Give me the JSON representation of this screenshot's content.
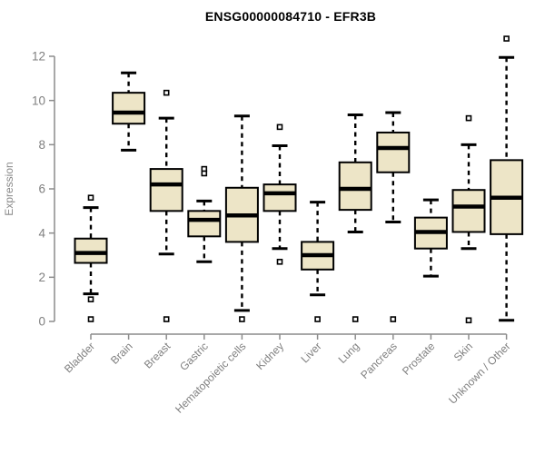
{
  "chart_data": {
    "type": "boxplot",
    "title": "ENSG00000084710 - EFR3B",
    "ylabel": "Expression",
    "xlabel": "",
    "ylim": [
      0,
      13
    ],
    "yticks": [
      0,
      2,
      4,
      6,
      8,
      10,
      12
    ],
    "grid": false,
    "legend": "none",
    "categories": [
      "Bladder",
      "Brain",
      "Breast",
      "Gastric",
      "Hematopoietic cells",
      "Kidney",
      "Liver",
      "Lung",
      "Pancreas",
      "Prostate",
      "Skin",
      "Unknown / Other"
    ],
    "series": [
      {
        "name": "Bladder",
        "whisker_low": 1.25,
        "q1": 2.65,
        "median": 3.1,
        "q3": 3.75,
        "whisker_high": 5.15,
        "outliers": [
          5.6,
          1.0,
          0.1
        ]
      },
      {
        "name": "Brain",
        "whisker_low": 7.75,
        "q1": 8.95,
        "median": 9.45,
        "q3": 10.35,
        "whisker_high": 11.25,
        "outliers": []
      },
      {
        "name": "Breast",
        "whisker_low": 3.05,
        "q1": 5.0,
        "median": 6.2,
        "q3": 6.9,
        "whisker_high": 9.2,
        "outliers": [
          10.35,
          0.1
        ]
      },
      {
        "name": "Gastric",
        "whisker_low": 2.7,
        "q1": 3.85,
        "median": 4.6,
        "q3": 5.0,
        "whisker_high": 5.45,
        "outliers": [
          6.9,
          6.7
        ]
      },
      {
        "name": "Hematopoietic cells",
        "whisker_low": 0.5,
        "q1": 3.6,
        "median": 4.8,
        "q3": 6.05,
        "whisker_high": 9.3,
        "outliers": [
          0.1
        ]
      },
      {
        "name": "Kidney",
        "whisker_low": 3.3,
        "q1": 5.0,
        "median": 5.8,
        "q3": 6.2,
        "whisker_high": 7.95,
        "outliers": [
          8.8,
          2.7
        ]
      },
      {
        "name": "Liver",
        "whisker_low": 1.2,
        "q1": 2.35,
        "median": 3.0,
        "q3": 3.6,
        "whisker_high": 5.4,
        "outliers": [
          0.1
        ]
      },
      {
        "name": "Lung",
        "whisker_low": 4.05,
        "q1": 5.05,
        "median": 6.0,
        "q3": 7.2,
        "whisker_high": 9.35,
        "outliers": [
          0.1
        ]
      },
      {
        "name": "Pancreas",
        "whisker_low": 4.5,
        "q1": 6.75,
        "median": 7.85,
        "q3": 8.55,
        "whisker_high": 9.45,
        "outliers": [
          0.1
        ]
      },
      {
        "name": "Prostate",
        "whisker_low": 2.05,
        "q1": 3.3,
        "median": 4.05,
        "q3": 4.7,
        "whisker_high": 5.5,
        "outliers": []
      },
      {
        "name": "Skin",
        "whisker_low": 3.3,
        "q1": 4.05,
        "median": 5.2,
        "q3": 5.95,
        "whisker_high": 8.0,
        "outliers": [
          9.2,
          0.05
        ]
      },
      {
        "name": "Unknown / Other",
        "whisker_low": 0.05,
        "q1": 3.95,
        "median": 5.6,
        "q3": 7.3,
        "whisker_high": 11.95,
        "outliers": [
          12.8
        ]
      }
    ]
  },
  "style": {
    "box_fill": "#ede5c7",
    "box_stroke": "#000000",
    "median_color": "#000000",
    "whisker_color": "#000000",
    "outlier_stroke": "#000000",
    "axis_color": "#8c8c8c",
    "tick_text_color": "#808080",
    "ylabel_color": "#8a8a8a",
    "title_color": "#000000",
    "background": "#ffffff"
  }
}
